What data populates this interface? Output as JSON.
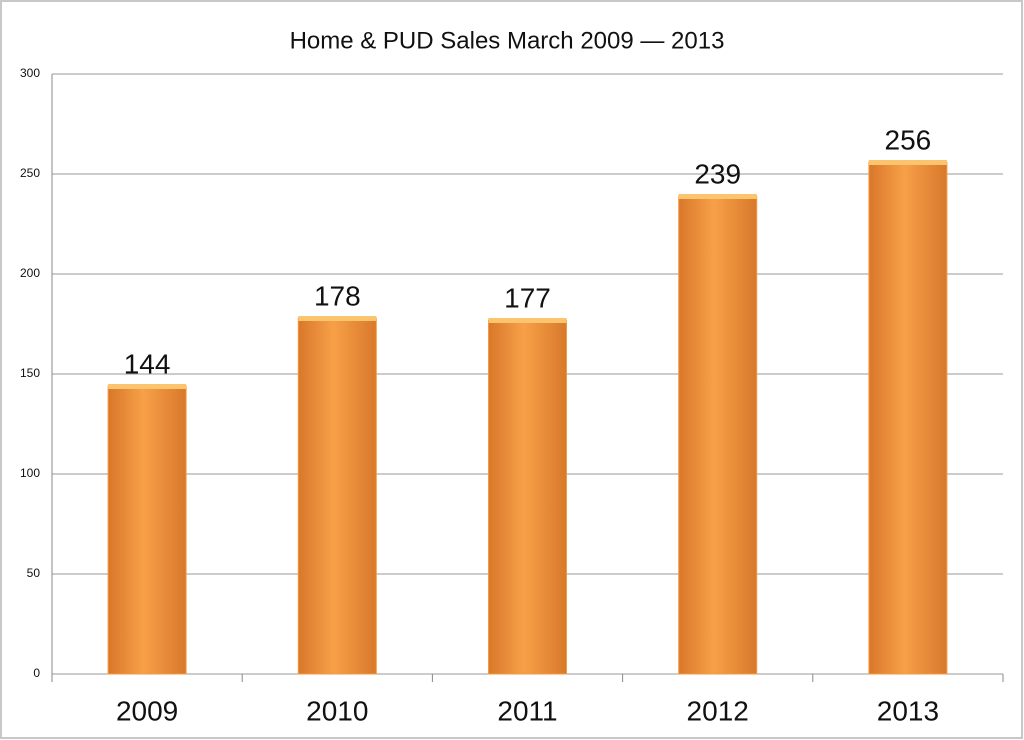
{
  "chart_data": {
    "type": "bar",
    "title": "Home & PUD Sales March 2009 — 2013",
    "categories": [
      "2009",
      "2010",
      "2011",
      "2012",
      "2013"
    ],
    "values": [
      144,
      178,
      177,
      239,
      256
    ],
    "color": "#f39a3e",
    "ylim": [
      0,
      300
    ],
    "yticks": [
      0,
      50,
      100,
      150,
      200,
      250,
      300
    ],
    "grid": true
  }
}
